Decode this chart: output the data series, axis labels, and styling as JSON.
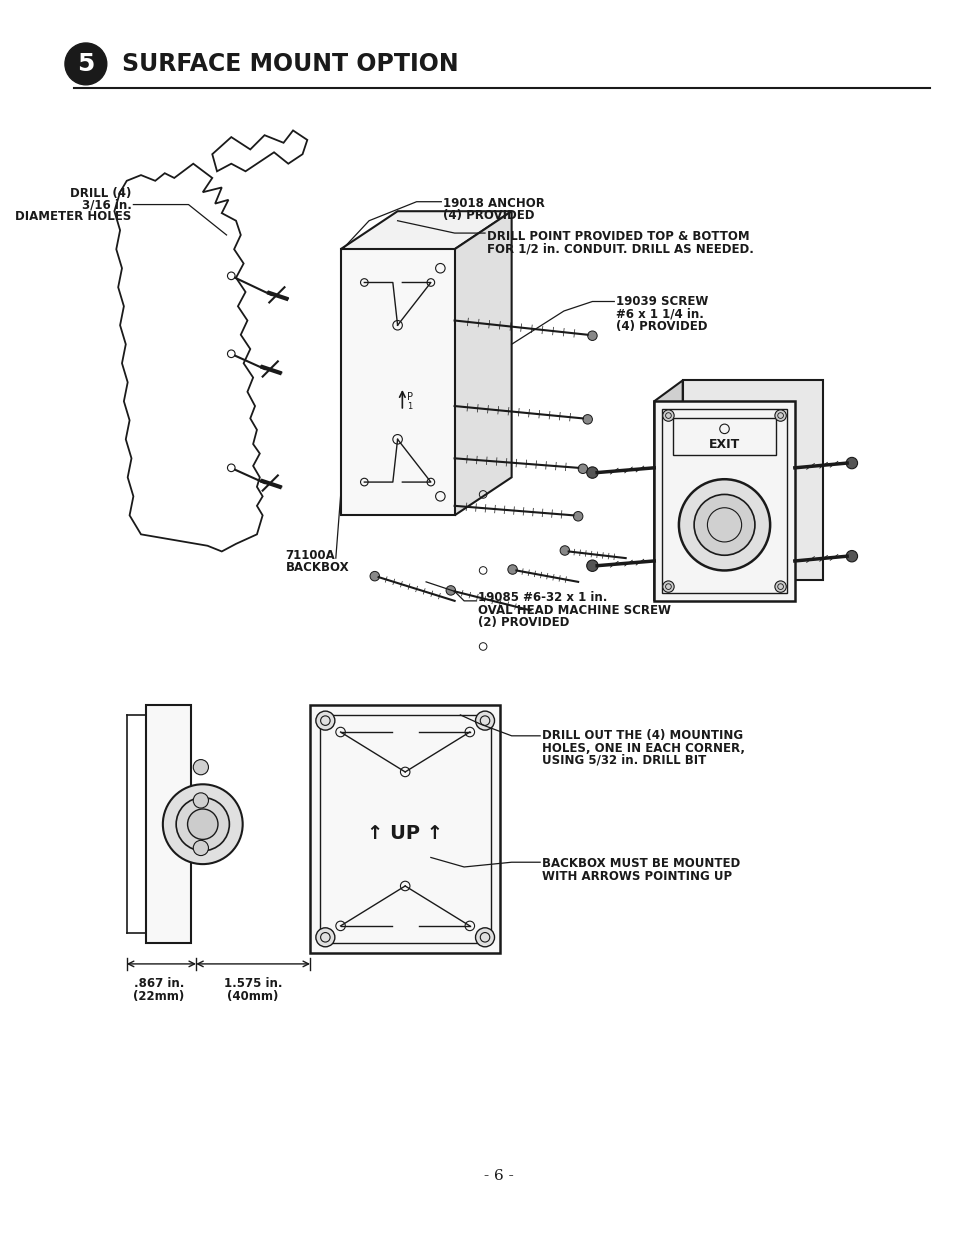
{
  "title": "SURFACE MOUNT OPTION",
  "title_number": "5",
  "page_number": "- 6 -",
  "background_color": "#ffffff",
  "text_color": "#1a1a1a",
  "line_color": "#1a1a1a"
}
